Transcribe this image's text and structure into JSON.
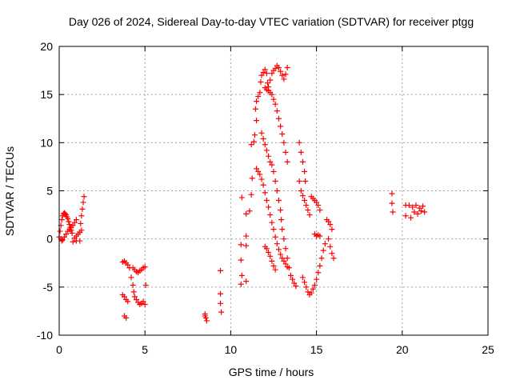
{
  "chart_data": {
    "type": "scatter",
    "title": "Day 026 of 2024, Sidereal Day-to-day VTEC variation (SDTVAR) for receiver ptgg",
    "xlabel": "GPS time / hours",
    "ylabel": "SDTVAR / TECUs",
    "xlim": [
      0,
      25
    ],
    "ylim": [
      -10,
      20
    ],
    "xticks": [
      0,
      5,
      10,
      15,
      20,
      25
    ],
    "yticks": [
      -10,
      -5,
      0,
      5,
      10,
      15,
      20
    ],
    "x_tick_labels": [
      "0",
      "5",
      "10",
      "15",
      "20",
      "25"
    ],
    "y_tick_labels": [
      "-10",
      "-5",
      "0",
      "5",
      "10",
      "15",
      "20"
    ],
    "grid": true,
    "marker": "+",
    "color": "#ff0000",
    "series": [
      {
        "name": "SDTVAR",
        "points": [
          [
            0.0,
            0.2
          ],
          [
            0.05,
            0.8
          ],
          [
            0.1,
            1.4
          ],
          [
            0.15,
            2.0
          ],
          [
            0.2,
            2.4
          ],
          [
            0.25,
            2.6
          ],
          [
            0.3,
            2.7
          ],
          [
            0.35,
            2.6
          ],
          [
            0.4,
            2.5
          ],
          [
            0.45,
            2.3
          ],
          [
            0.5,
            2.1
          ],
          [
            0.55,
            1.8
          ],
          [
            0.6,
            1.5
          ],
          [
            0.65,
            1.2
          ],
          [
            0.7,
            0.9
          ],
          [
            0.75,
            0.6
          ],
          [
            0.1,
            0.0
          ],
          [
            0.15,
            -0.2
          ],
          [
            0.2,
            -0.1
          ],
          [
            0.3,
            0.2
          ],
          [
            0.4,
            0.5
          ],
          [
            0.5,
            0.8
          ],
          [
            0.6,
            1.0
          ],
          [
            0.7,
            1.2
          ],
          [
            0.8,
            1.4
          ],
          [
            0.9,
            1.7
          ],
          [
            1.0,
            2.0
          ],
          [
            0.9,
            0.1
          ],
          [
            1.0,
            0.3
          ],
          [
            1.1,
            0.5
          ],
          [
            1.2,
            0.7
          ],
          [
            1.3,
            0.9
          ],
          [
            1.25,
            1.6
          ],
          [
            1.3,
            2.4
          ],
          [
            1.35,
            3.1
          ],
          [
            1.4,
            3.8
          ],
          [
            1.45,
            4.4
          ],
          [
            0.8,
            -0.3
          ],
          [
            1.0,
            -0.2
          ],
          [
            1.2,
            -0.2
          ],
          [
            3.7,
            -2.4
          ],
          [
            3.8,
            -2.3
          ],
          [
            3.9,
            -2.5
          ],
          [
            4.0,
            -2.7
          ],
          [
            4.1,
            -3.0
          ],
          [
            4.2,
            -4.0
          ],
          [
            4.3,
            -4.8
          ],
          [
            4.35,
            -5.5
          ],
          [
            4.4,
            -6.0
          ],
          [
            4.5,
            -6.3
          ],
          [
            4.6,
            -6.6
          ],
          [
            4.7,
            -6.8
          ],
          [
            4.8,
            -6.7
          ],
          [
            4.9,
            -6.5
          ],
          [
            5.0,
            -6.8
          ],
          [
            4.3,
            -3.0
          ],
          [
            4.4,
            -3.2
          ],
          [
            4.5,
            -3.4
          ],
          [
            4.6,
            -3.5
          ],
          [
            4.7,
            -3.3
          ],
          [
            4.8,
            -3.2
          ],
          [
            4.9,
            -3.0
          ],
          [
            5.0,
            -2.9
          ],
          [
            5.05,
            -4.8
          ],
          [
            3.7,
            -5.8
          ],
          [
            3.8,
            -6.0
          ],
          [
            3.9,
            -6.3
          ],
          [
            4.0,
            -6.5
          ],
          [
            3.8,
            -8.0
          ],
          [
            3.9,
            -8.2
          ],
          [
            8.5,
            -7.8
          ],
          [
            8.55,
            -8.2
          ],
          [
            8.6,
            -8.5
          ],
          [
            8.5,
            -8.0
          ],
          [
            9.4,
            -3.3
          ],
          [
            9.4,
            -5.7
          ],
          [
            9.4,
            -6.7
          ],
          [
            9.45,
            -7.6
          ],
          [
            10.6,
            -0.6
          ],
          [
            10.6,
            -2.2
          ],
          [
            10.65,
            -3.8
          ],
          [
            10.6,
            -4.7
          ],
          [
            10.9,
            -4.4
          ],
          [
            10.9,
            -0.7
          ],
          [
            10.9,
            0.3
          ],
          [
            10.65,
            4.3
          ],
          [
            10.9,
            2.6
          ],
          [
            11.1,
            2.9
          ],
          [
            11.2,
            4.6
          ],
          [
            11.25,
            6.3
          ],
          [
            11.2,
            9.8
          ],
          [
            11.35,
            10.1
          ],
          [
            11.4,
            10.8
          ],
          [
            11.5,
            12.3
          ],
          [
            11.45,
            13.5
          ],
          [
            11.5,
            14.3
          ],
          [
            11.6,
            14.8
          ],
          [
            11.7,
            15.2
          ],
          [
            11.75,
            16.3
          ],
          [
            11.8,
            17.0
          ],
          [
            11.9,
            17.3
          ],
          [
            12.0,
            17.6
          ],
          [
            12.1,
            17.2
          ],
          [
            12.15,
            16.2
          ],
          [
            12.2,
            15.8
          ],
          [
            12.3,
            16.5
          ],
          [
            12.4,
            17.2
          ],
          [
            12.5,
            17.5
          ],
          [
            12.6,
            17.7
          ],
          [
            12.7,
            18.0
          ],
          [
            12.8,
            17.8
          ],
          [
            12.9,
            17.4
          ],
          [
            13.0,
            17.0
          ],
          [
            13.1,
            16.6
          ],
          [
            13.2,
            17.1
          ],
          [
            13.3,
            17.8
          ],
          [
            11.5,
            7.3
          ],
          [
            11.6,
            7.0
          ],
          [
            11.7,
            6.7
          ],
          [
            11.8,
            6.2
          ],
          [
            11.9,
            5.6
          ],
          [
            12.0,
            4.8
          ],
          [
            12.1,
            4.0
          ],
          [
            12.2,
            3.3
          ],
          [
            12.3,
            2.5
          ],
          [
            12.4,
            1.7
          ],
          [
            12.5,
            1.0
          ],
          [
            12.6,
            0.2
          ],
          [
            12.7,
            -0.5
          ],
          [
            12.8,
            -1.1
          ],
          [
            12.9,
            -1.6
          ],
          [
            13.0,
            -2.0
          ],
          [
            13.1,
            -2.3
          ],
          [
            13.2,
            -2.6
          ],
          [
            13.3,
            -2.9
          ],
          [
            12.0,
            15.7
          ],
          [
            12.1,
            15.5
          ],
          [
            12.2,
            15.4
          ],
          [
            12.3,
            15.2
          ],
          [
            12.4,
            15.0
          ],
          [
            12.5,
            14.5
          ],
          [
            12.6,
            14.0
          ],
          [
            12.7,
            13.3
          ],
          [
            12.8,
            12.5
          ],
          [
            12.9,
            11.7
          ],
          [
            13.0,
            10.9
          ],
          [
            13.1,
            10.0
          ],
          [
            13.2,
            9.0
          ],
          [
            13.3,
            8.0
          ],
          [
            13.0,
            1.0
          ],
          [
            12.95,
            2.0
          ],
          [
            12.9,
            3.0
          ],
          [
            12.8,
            4.0
          ],
          [
            12.7,
            5.0
          ],
          [
            12.6,
            6.0
          ],
          [
            12.5,
            7.0
          ],
          [
            12.4,
            7.7
          ],
          [
            12.3,
            8.0
          ],
          [
            12.2,
            8.6
          ],
          [
            12.1,
            9.2
          ],
          [
            12.0,
            9.8
          ],
          [
            11.9,
            10.4
          ],
          [
            11.8,
            11.0
          ],
          [
            12.0,
            -0.8
          ],
          [
            12.1,
            -1.0
          ],
          [
            12.2,
            -1.4
          ],
          [
            12.3,
            -1.8
          ],
          [
            12.4,
            -2.3
          ],
          [
            12.5,
            -2.8
          ],
          [
            12.6,
            -3.2
          ],
          [
            13.1,
            0.0
          ],
          [
            13.2,
            -1.0
          ],
          [
            13.3,
            -2.0
          ],
          [
            13.4,
            -3.0
          ],
          [
            13.5,
            -3.8
          ],
          [
            13.6,
            -4.2
          ],
          [
            13.7,
            -4.6
          ],
          [
            13.8,
            -4.9
          ],
          [
            14.2,
            -4.0
          ],
          [
            14.3,
            -4.5
          ],
          [
            14.4,
            -5.0
          ],
          [
            14.5,
            -5.5
          ],
          [
            14.6,
            -5.8
          ],
          [
            14.7,
            -5.6
          ],
          [
            14.8,
            -5.2
          ],
          [
            14.9,
            -4.8
          ],
          [
            15.0,
            -4.2
          ],
          [
            15.1,
            -3.5
          ],
          [
            15.2,
            -2.8
          ],
          [
            15.3,
            -2.0
          ],
          [
            15.4,
            -1.2
          ],
          [
            15.5,
            -0.5
          ],
          [
            14.0,
            10.0
          ],
          [
            14.1,
            9.0
          ],
          [
            14.2,
            8.0
          ],
          [
            14.3,
            7.0
          ],
          [
            14.35,
            6.0
          ],
          [
            14.0,
            6.0
          ],
          [
            14.1,
            5.0
          ],
          [
            14.2,
            4.5
          ],
          [
            14.3,
            4.0
          ],
          [
            14.4,
            3.5
          ],
          [
            14.5,
            3.0
          ],
          [
            14.6,
            2.5
          ],
          [
            14.7,
            4.4
          ],
          [
            14.8,
            4.2
          ],
          [
            14.9,
            4.0
          ],
          [
            15.0,
            3.8
          ],
          [
            15.1,
            3.5
          ],
          [
            15.2,
            3.0
          ],
          [
            14.9,
            0.5
          ],
          [
            15.0,
            0.3
          ],
          [
            15.1,
            0.4
          ],
          [
            15.2,
            0.3
          ],
          [
            15.6,
            2.0
          ],
          [
            15.7,
            1.8
          ],
          [
            15.8,
            1.5
          ],
          [
            15.9,
            1.0
          ],
          [
            15.7,
            0.0
          ],
          [
            15.8,
            -0.8
          ],
          [
            15.9,
            -1.5
          ],
          [
            16.0,
            -2.0
          ],
          [
            19.4,
            4.7
          ],
          [
            19.4,
            3.7
          ],
          [
            19.45,
            2.8
          ],
          [
            20.2,
            3.5
          ],
          [
            20.2,
            2.4
          ],
          [
            20.4,
            3.5
          ],
          [
            20.5,
            2.2
          ],
          [
            20.6,
            3.3
          ],
          [
            20.7,
            2.8
          ],
          [
            20.8,
            3.5
          ],
          [
            20.9,
            2.6
          ],
          [
            21.0,
            3.2
          ],
          [
            21.1,
            2.9
          ],
          [
            21.2,
            3.4
          ],
          [
            21.3,
            2.8
          ]
        ]
      }
    ]
  }
}
